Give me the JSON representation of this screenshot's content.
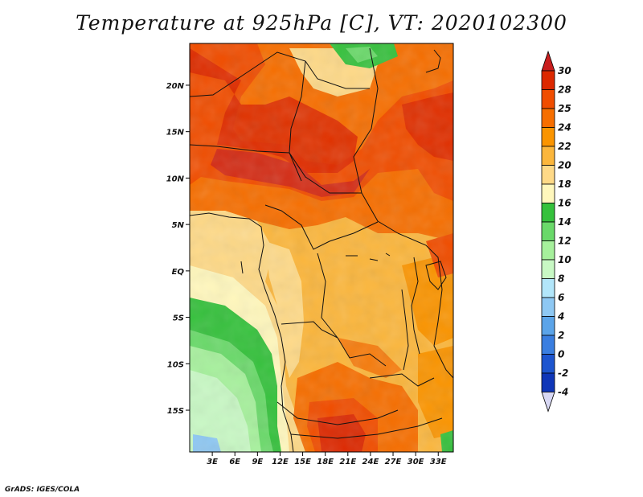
{
  "title": "Temperature at 925hPa [C], VT: 2020102300",
  "credit": "GrADS: IGES/COLA",
  "map": {
    "lat_range": [
      -19.5,
      24.5
    ],
    "lon_range": [
      0,
      35
    ],
    "lat_ticks": [
      {
        "label": "20N",
        "lat": 20
      },
      {
        "label": "15N",
        "lat": 15
      },
      {
        "label": "10N",
        "lat": 10
      },
      {
        "label": "5N",
        "lat": 5
      },
      {
        "label": "EQ",
        "lat": 0
      },
      {
        "label": "5S",
        "lat": -5
      },
      {
        "label": "10S",
        "lat": -10
      },
      {
        "label": "15S",
        "lat": -15
      }
    ],
    "lon_ticks": [
      {
        "label": "3E",
        "lon": 3
      },
      {
        "label": "6E",
        "lon": 6
      },
      {
        "label": "9E",
        "lon": 9
      },
      {
        "label": "12E",
        "lon": 12
      },
      {
        "label": "15E",
        "lon": 15
      },
      {
        "label": "18E",
        "lon": 18
      },
      {
        "label": "21E",
        "lon": 21
      },
      {
        "label": "24E",
        "lon": 24
      },
      {
        "label": "27E",
        "lon": 27
      },
      {
        "label": "30E",
        "lon": 30
      },
      {
        "label": "33E",
        "lon": 33
      }
    ]
  },
  "colorbar": {
    "labels": [
      "30",
      "28",
      "25",
      "24",
      "22",
      "20",
      "18",
      "16",
      "14",
      "12",
      "10",
      "8",
      "6",
      "4",
      "2",
      "0",
      "-2",
      "-4"
    ],
    "colors": [
      "#dc2800",
      "#f04d00",
      "#f66e00",
      "#fa9400",
      "#fbb63c",
      "#fed987",
      "#fff7bc",
      "#35c13c",
      "#6ad96a",
      "#a6f09c",
      "#c8f8c4",
      "#b2e6fa",
      "#8ec8f3",
      "#5ba4e9",
      "#3a7ee0",
      "#1d55cf",
      "#0f36b8",
      "#0a1a8c"
    ],
    "top_arrow_color": "#c81e1e",
    "bottom_arrow_color": "#d8d8f4"
  }
}
